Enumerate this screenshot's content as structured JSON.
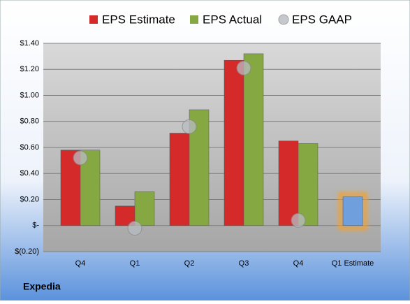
{
  "chart_data": {
    "type": "bar",
    "categories": [
      "Q4",
      "Q1",
      "Q2",
      "Q3",
      "Q4",
      "Q1 Estimate"
    ],
    "series": [
      {
        "name": "EPS Estimate",
        "color": "#d42a2a",
        "values": [
          0.58,
          0.15,
          0.71,
          1.27,
          0.65,
          0.22
        ]
      },
      {
        "name": "EPS Actual",
        "color": "#86a843",
        "values": [
          0.58,
          0.26,
          0.89,
          1.32,
          0.63,
          null
        ]
      },
      {
        "name": "EPS GAAP",
        "color": "#b8bcc2",
        "type": "scatter",
        "values": [
          0.52,
          -0.02,
          0.76,
          1.21,
          0.04,
          null
        ]
      }
    ],
    "highlight": {
      "category": "Q1 Estimate",
      "color": "#6f9fdc",
      "glow": "#f0a030"
    },
    "ylim": [
      -0.2,
      1.4
    ],
    "yticks": [
      {
        "value": -0.2,
        "label": "$(0.20)"
      },
      {
        "value": 0,
        "label": "$-"
      },
      {
        "value": 0.2,
        "label": "$0.20"
      },
      {
        "value": 0.4,
        "label": "$0.40"
      },
      {
        "value": 0.6,
        "label": "$0.60"
      },
      {
        "value": 0.8,
        "label": "$0.80"
      },
      {
        "value": 1.0,
        "label": "$1.00"
      },
      {
        "value": 1.2,
        "label": "$1.20"
      },
      {
        "value": 1.4,
        "label": "$1.40"
      }
    ],
    "grid": true,
    "footer": "Expedia"
  }
}
